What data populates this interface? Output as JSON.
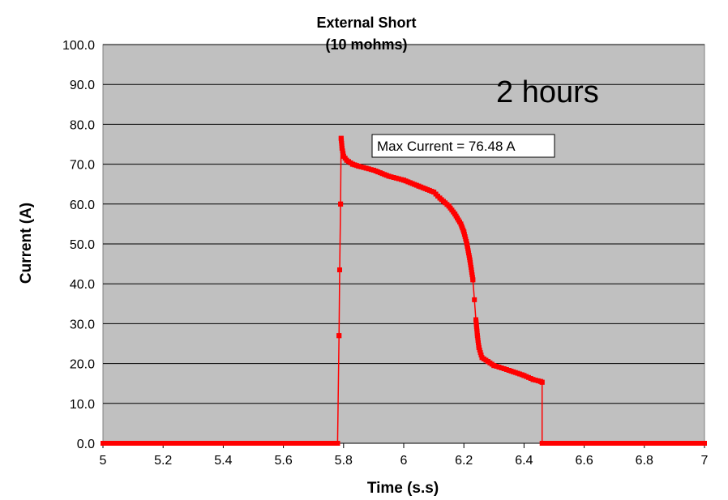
{
  "chart_data": {
    "type": "line",
    "title": [
      "External Short",
      "(10 mohms)"
    ],
    "xlabel": "Time (s.s)",
    "ylabel": "Current (A)",
    "xlim": [
      5,
      7
    ],
    "ylim": [
      0,
      100
    ],
    "x_ticks": [
      "5",
      "5.2",
      "5.4",
      "5.6",
      "5.8",
      "6",
      "6.2",
      "6.4",
      "6.6",
      "6.8",
      "7"
    ],
    "y_ticks": [
      "0.0",
      "10.0",
      "20.0",
      "30.0",
      "40.0",
      "50.0",
      "60.0",
      "70.0",
      "80.0",
      "90.0",
      "100.0"
    ],
    "grid": true,
    "plot_background": "#c0c0c0",
    "series_color": "#ff0000",
    "annotation": "Max Current = 76.48 A",
    "note": "2 hours",
    "series": [
      {
        "x": [
          5.0,
          5.78,
          5.785,
          5.787,
          5.79,
          5.792,
          5.795,
          5.8,
          5.81,
          5.83,
          5.85,
          5.9,
          5.95,
          6.0,
          6.05,
          6.1,
          6.12,
          6.15,
          6.17,
          6.19,
          6.2,
          6.21,
          6.22,
          6.23,
          6.235,
          6.24,
          6.245,
          6.25,
          6.26,
          6.28,
          6.3,
          6.35,
          6.4,
          6.43,
          6.455,
          6.46,
          6.46,
          7.0
        ],
        "y": [
          0,
          0,
          27,
          43.5,
          60,
          76.48,
          74,
          72,
          71,
          70,
          69.5,
          68.5,
          67,
          66,
          64.5,
          63,
          61.5,
          59.5,
          57.5,
          55,
          53,
          50,
          46,
          41,
          36,
          31,
          27,
          24,
          21.5,
          20.5,
          19.5,
          18.3,
          17,
          16,
          15.5,
          15.3,
          0,
          0
        ]
      }
    ]
  }
}
